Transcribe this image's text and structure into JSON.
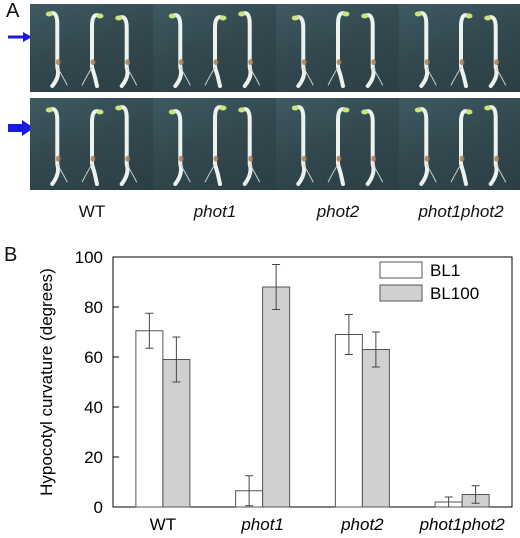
{
  "panel_a": {
    "letter": "A",
    "row_labels": [
      "",
      ""
    ],
    "genotypes": [
      "WT",
      "phot1",
      "phot2",
      "phot1phot2"
    ],
    "row_arrows": [
      {
        "icon": "arrow-right-thin-icon",
        "color": "#1a1ae6"
      },
      {
        "icon": "arrow-right-thick-icon",
        "color": "#1a1ae6"
      }
    ]
  },
  "panel_b": {
    "letter": "B"
  },
  "chart_data": {
    "type": "bar",
    "categories": [
      "WT",
      "phot1",
      "phot2",
      "phot1phot2"
    ],
    "category_style": [
      "normal",
      "italic",
      "italic",
      "italic"
    ],
    "series": [
      {
        "name": "BL1",
        "values": [
          70.5,
          6.5,
          69,
          2
        ],
        "errors": [
          7,
          6,
          8,
          2
        ],
        "fill": "#ffffff"
      },
      {
        "name": "BL100",
        "values": [
          59,
          88,
          63,
          5
        ],
        "errors": [
          9,
          9,
          7,
          3.5
        ],
        "fill": "#d0d0d0"
      }
    ],
    "ylabel": "Hypocotyl curvature (degrees)",
    "xlabel": "",
    "ylim": [
      0,
      100
    ],
    "yticks": [
      0,
      20,
      40,
      60,
      80,
      100
    ],
    "legend_position": "top-right",
    "grid": false
  }
}
